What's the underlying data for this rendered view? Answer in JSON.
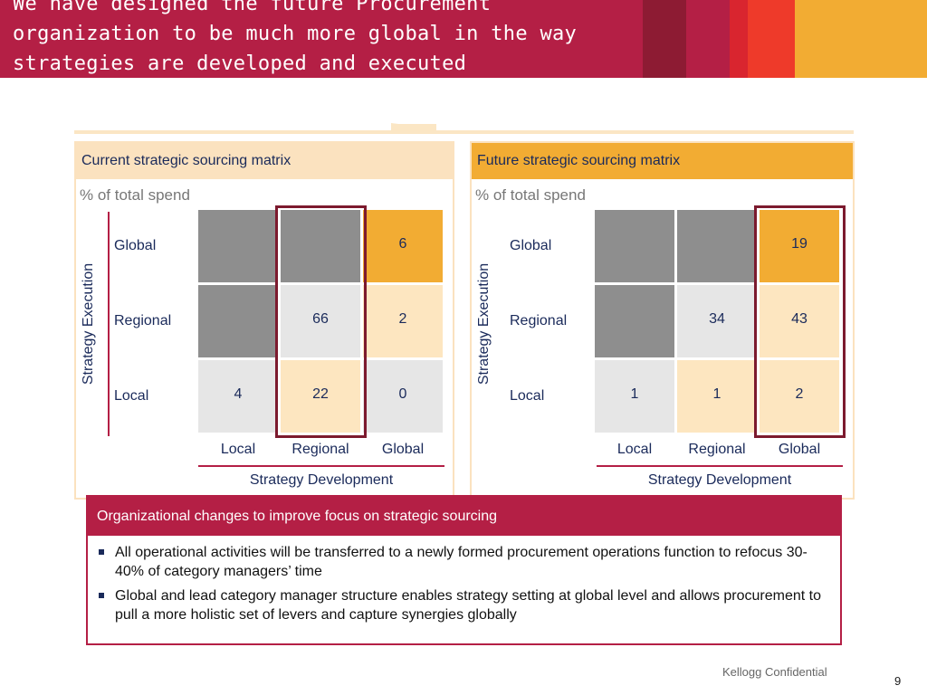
{
  "header": {
    "title": "We have designed the future Procurement\norganization to be much more global in the way\nstrategies are developed and executed"
  },
  "colors": {
    "brand_red": "#b41f45",
    "accent_orange": "#f2ac33",
    "cream": "#fde6c0",
    "gray": "#8e8e8e",
    "light_gray": "#e6e6e6"
  },
  "matrices": [
    {
      "title": "Current strategic sourcing matrix",
      "subtitle": "% of total spend",
      "y_axis_label": "Strategy Execution",
      "x_axis_label": "Strategy Development",
      "rows": [
        "Global",
        "Regional",
        "Local"
      ],
      "cols": [
        "Local",
        "Regional",
        "Global"
      ],
      "cells": [
        [
          "",
          "",
          "6"
        ],
        [
          "",
          "66",
          "2"
        ],
        [
          "4",
          "22",
          "0"
        ]
      ],
      "highlighted_column": "Regional"
    },
    {
      "title": "Future strategic sourcing matrix",
      "subtitle": "% of total spend",
      "y_axis_label": "Strategy Execution",
      "x_axis_label": "Strategy Development",
      "rows": [
        "Global",
        "Regional",
        "Local"
      ],
      "cols": [
        "Local",
        "Regional",
        "Global"
      ],
      "cells": [
        [
          "",
          "",
          "19"
        ],
        [
          "",
          "34",
          "43"
        ],
        [
          "1",
          "1",
          "2"
        ]
      ],
      "highlighted_column": "Global"
    }
  ],
  "changes": {
    "title": "Organizational changes to improve focus on strategic sourcing",
    "bullets": [
      "All operational activities will be transferred to a newly formed procurement operations function to refocus 30-40% of category managers’ time",
      "Global and lead category manager structure enables strategy setting at global level and allows procurement to pull a more holistic set of levers and capture synergies globally"
    ]
  },
  "footer": {
    "confidential": "Kellogg Confidential",
    "page_number": "9"
  }
}
